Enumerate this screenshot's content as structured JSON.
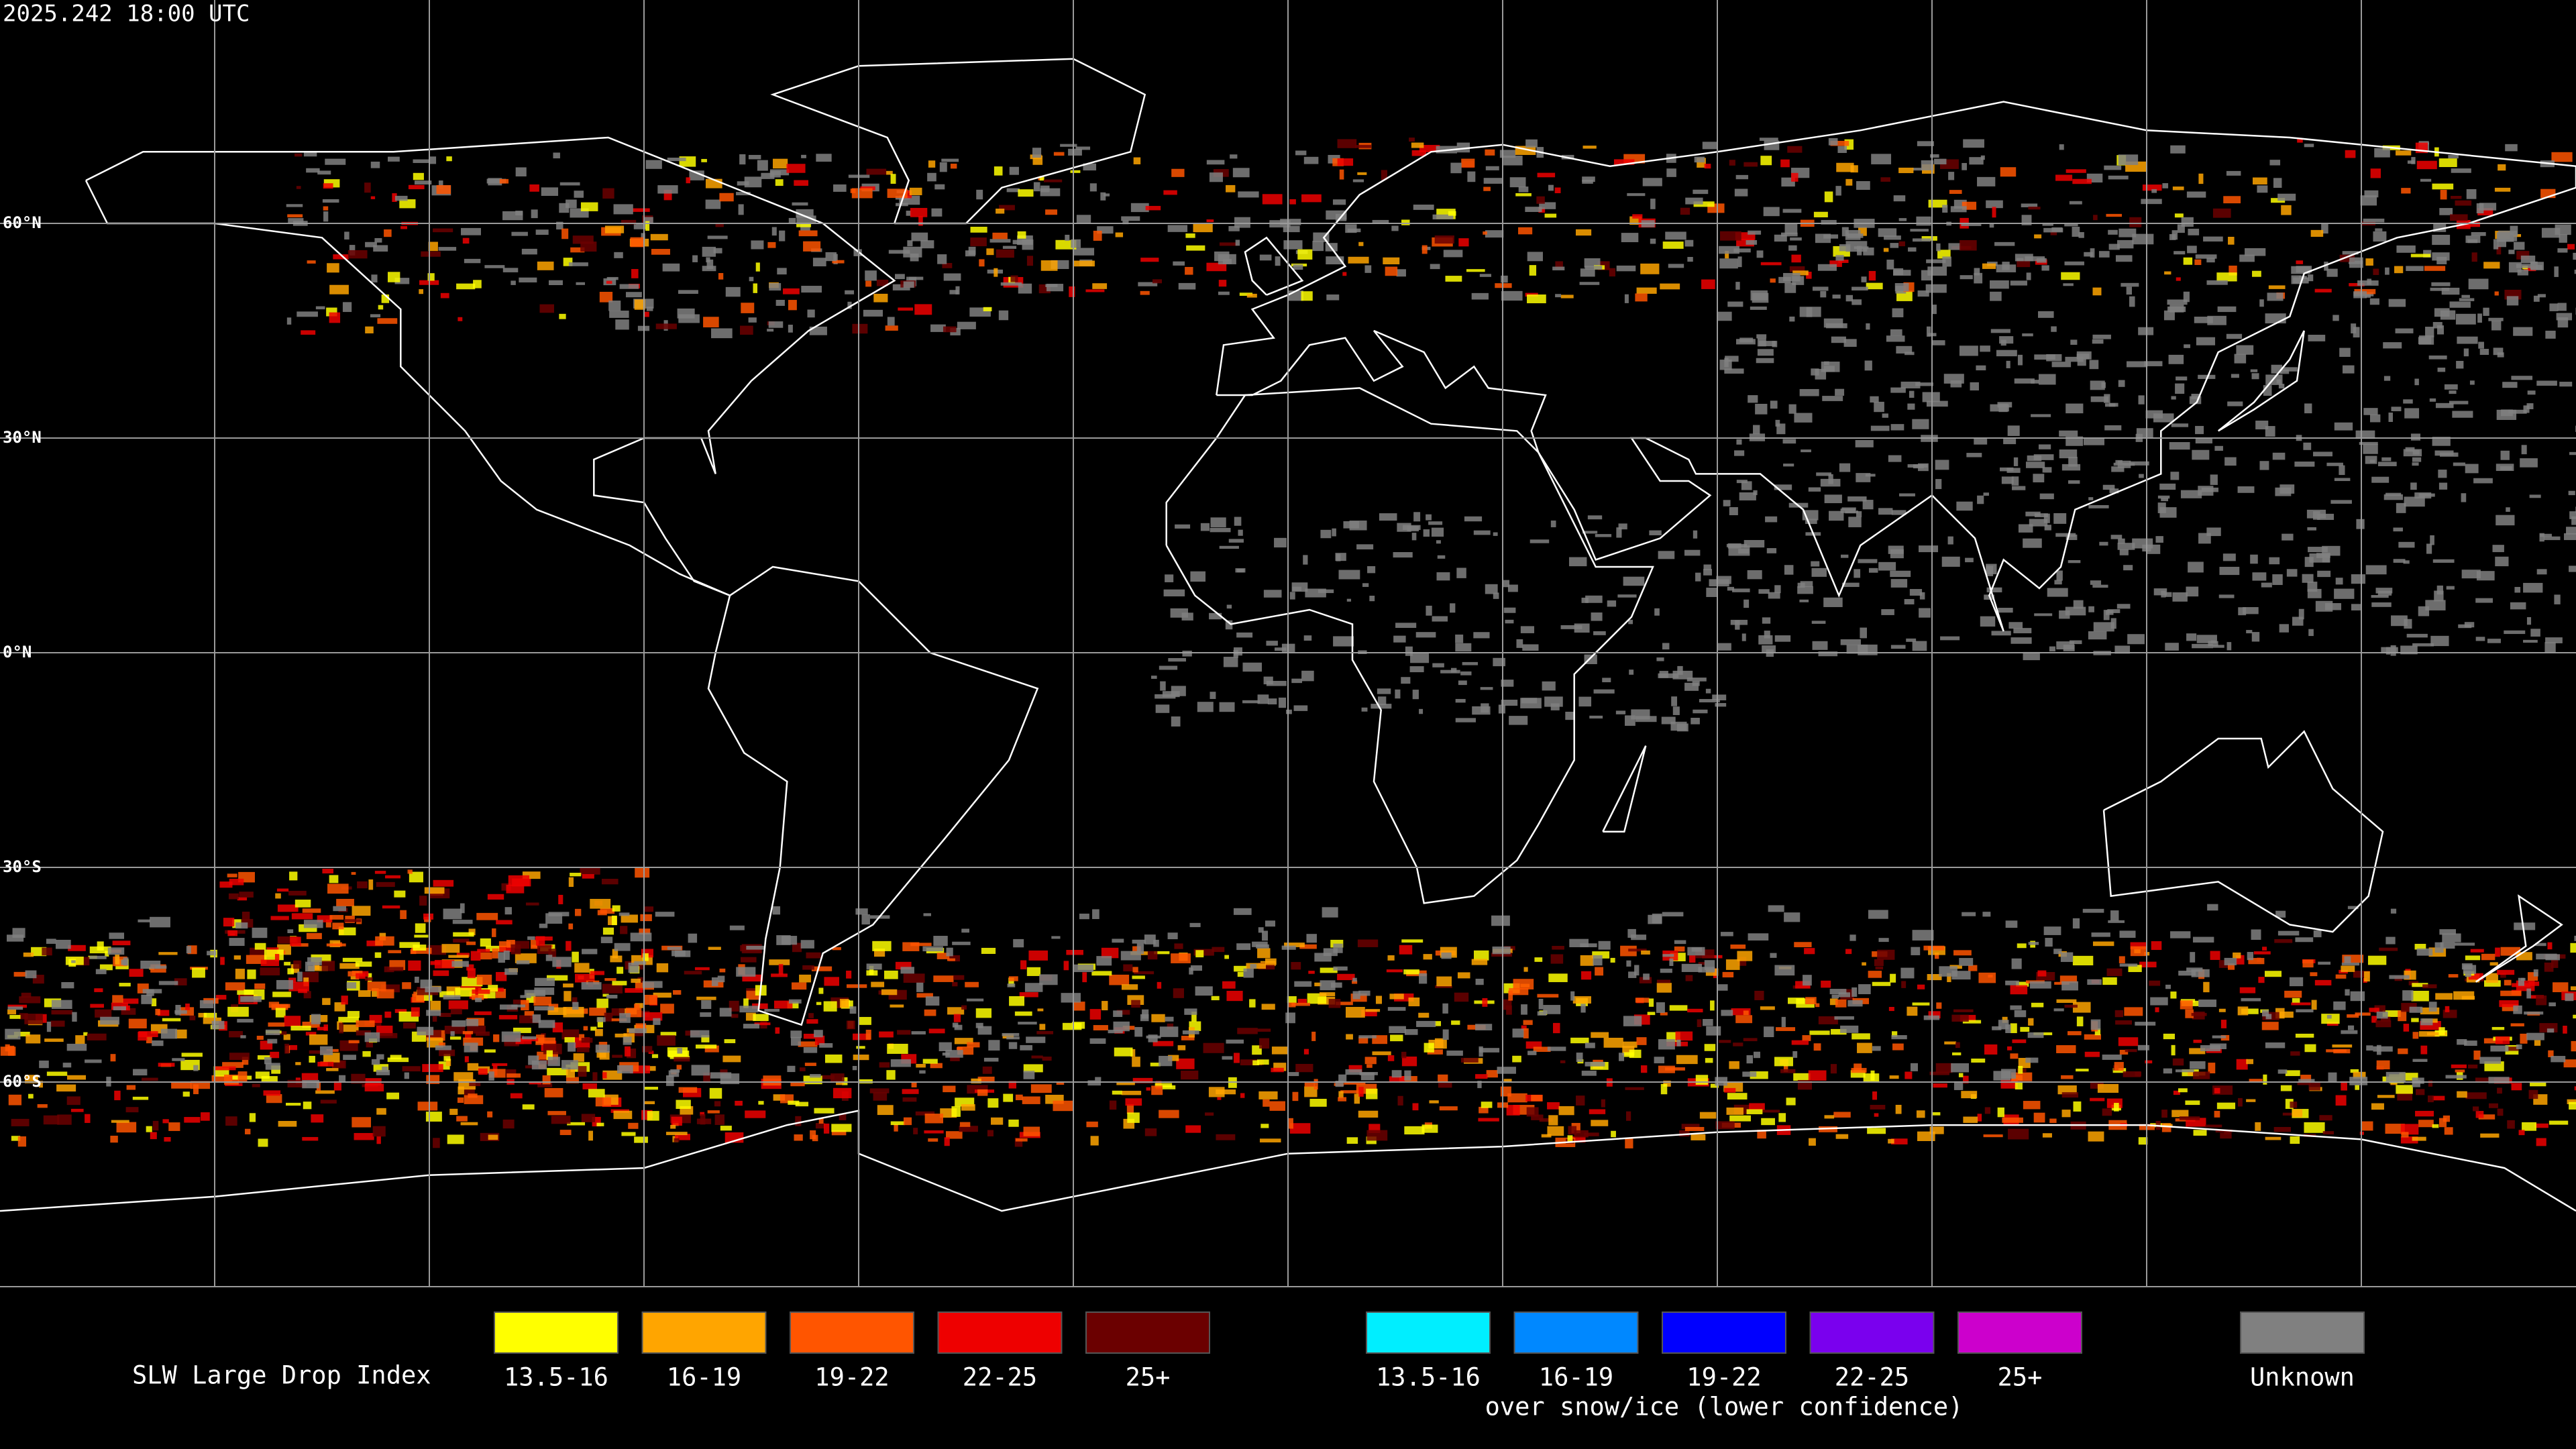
{
  "header": {
    "timestamp": "2025.242 18:00 UTC"
  },
  "map": {
    "latitude_labels": [
      "60°N",
      "30°N",
      "0°N",
      "30°S",
      "60°S"
    ]
  },
  "legend": {
    "title": "SLW Large Drop Index",
    "groups": [
      {
        "items": [
          {
            "label": "13.5-16",
            "color": "#ffff00"
          },
          {
            "label": "16-19",
            "color": "#ffa500"
          },
          {
            "label": "19-22",
            "color": "#ff5500"
          },
          {
            "label": "22-25",
            "color": "#ee0000"
          },
          {
            "label": "25+",
            "color": "#6b0000"
          }
        ]
      },
      {
        "subtitle": "over snow/ice (lower confidence)",
        "items": [
          {
            "label": "13.5-16",
            "color": "#00eeff"
          },
          {
            "label": "16-19",
            "color": "#0088ff"
          },
          {
            "label": "19-22",
            "color": "#0000ff"
          },
          {
            "label": "22-25",
            "color": "#7a00ee"
          },
          {
            "label": "25+",
            "color": "#cc00cc"
          }
        ]
      },
      {
        "items": [
          {
            "label": "Unknown",
            "color": "#808080"
          }
        ]
      }
    ]
  }
}
